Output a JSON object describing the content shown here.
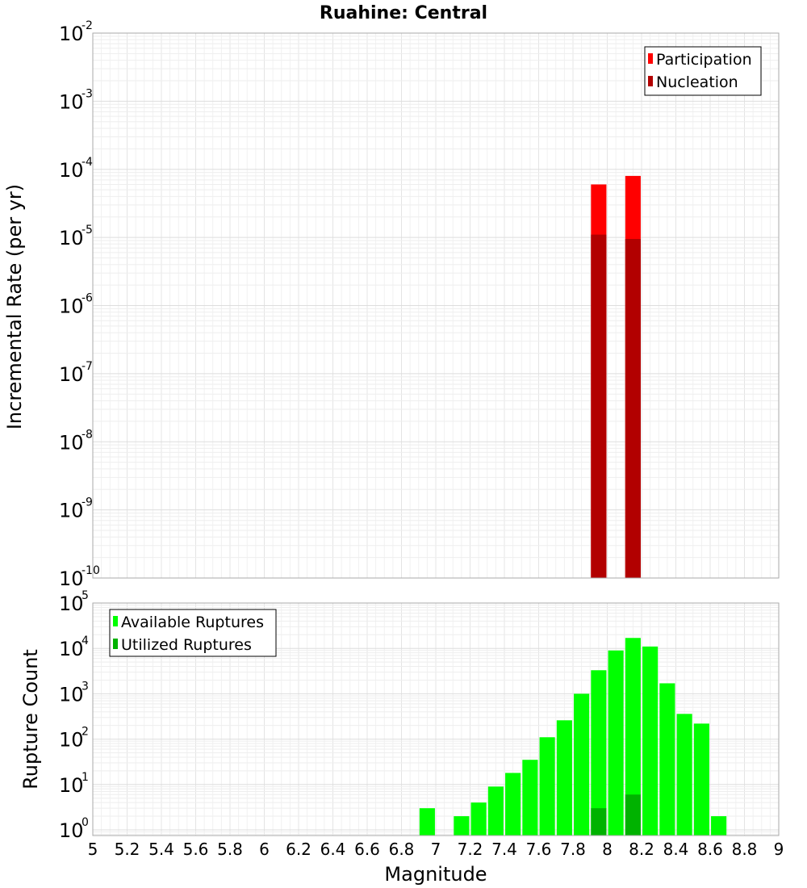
{
  "chart_data": [
    {
      "type": "bar",
      "title": "Ruahine: Central",
      "ylabel": "Incremental Rate (per yr)",
      "yscale": "log",
      "ylim": [
        1e-10,
        0.01
      ],
      "xlim": [
        5,
        9
      ],
      "grid": true,
      "legend_position": "top-right",
      "ytick_labels": [
        {
          "base": "10",
          "exp": "-10"
        },
        {
          "base": "10",
          "exp": "-9"
        },
        {
          "base": "10",
          "exp": "-8"
        },
        {
          "base": "10",
          "exp": "-7"
        },
        {
          "base": "10",
          "exp": "-6"
        },
        {
          "base": "10",
          "exp": "-5"
        },
        {
          "base": "10",
          "exp": "-4"
        },
        {
          "base": "10",
          "exp": "-3"
        },
        {
          "base": "10",
          "exp": "-2"
        }
      ],
      "series": [
        {
          "name": "Participation",
          "color": "#ff0000",
          "x": [
            7.95,
            8.15
          ],
          "values": [
            6e-05,
            8e-05
          ]
        },
        {
          "name": "Nucleation",
          "color": "#b20000",
          "x": [
            7.95,
            8.15
          ],
          "values": [
            1.1e-05,
            9.5e-06
          ]
        }
      ]
    },
    {
      "type": "bar",
      "title": "",
      "xlabel": "Magnitude",
      "ylabel": "Rupture Count",
      "yscale": "log",
      "ylim": [
        0.75,
        100000
      ],
      "xlim": [
        5,
        9
      ],
      "grid": true,
      "legend_position": "top-left",
      "xtick_labels": [
        "5",
        "5.2",
        "5.4",
        "5.6",
        "5.8",
        "6",
        "6.2",
        "6.4",
        "6.6",
        "6.8",
        "7",
        "7.2",
        "7.4",
        "7.6",
        "7.8",
        "8",
        "8.2",
        "8.4",
        "8.6",
        "8.8",
        "9"
      ],
      "ytick_labels": [
        {
          "base": "10",
          "exp": "0"
        },
        {
          "base": "10",
          "exp": "1"
        },
        {
          "base": "10",
          "exp": "2"
        },
        {
          "base": "10",
          "exp": "3"
        },
        {
          "base": "10",
          "exp": "4"
        },
        {
          "base": "10",
          "exp": "5"
        }
      ],
      "series": [
        {
          "name": "Available Ruptures",
          "color": "#00ff00",
          "x": [
            6.95,
            7.15,
            7.25,
            7.35,
            7.45,
            7.55,
            7.65,
            7.75,
            7.85,
            7.95,
            8.05,
            8.15,
            8.25,
            8.35,
            8.45,
            8.55,
            8.65
          ],
          "values": [
            3,
            2,
            4,
            9,
            18,
            35,
            110,
            260,
            1000,
            3300,
            9000,
            17000,
            11000,
            1700,
            360,
            220,
            2
          ]
        },
        {
          "name": "Utilized Ruptures",
          "color": "#00b200",
          "x": [
            7.95,
            8.15
          ],
          "values": [
            3,
            6
          ]
        }
      ]
    }
  ]
}
